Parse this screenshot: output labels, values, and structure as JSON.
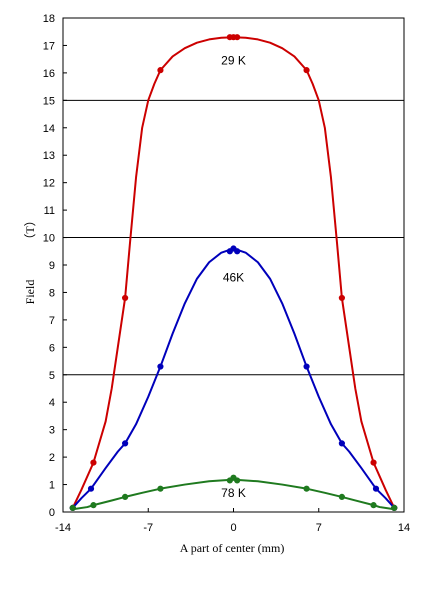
{
  "chart_data": {
    "type": "line",
    "title": "",
    "xlabel": "A part of center (mm)",
    "ylabel": "Field",
    "yunit": "（T）",
    "xlim": [
      -14,
      14
    ],
    "ylim": [
      0,
      18
    ],
    "xticks": [
      -14,
      -7,
      0,
      7,
      14
    ],
    "yticks": [
      0,
      1,
      2,
      3,
      4,
      5,
      6,
      7,
      8,
      9,
      10,
      11,
      12,
      13,
      14,
      15,
      16,
      17,
      18
    ],
    "xtick_labels": [
      "-14",
      "-7",
      "0",
      "7",
      "14"
    ],
    "ytick_labels": [
      "0",
      "1",
      "2",
      "3",
      "4",
      "5",
      "6",
      "7",
      "8",
      "9",
      "10",
      "11",
      "12",
      "13",
      "14",
      "15",
      "16",
      "17",
      "18"
    ],
    "reference_lines": [
      5,
      10,
      15
    ],
    "grid": false,
    "legend": "none",
    "series": [
      {
        "label": "29 K",
        "color": "#cc0000",
        "label_pos": [
          0,
          16.3
        ],
        "x": [
          -13.2,
          -11.5,
          -8.9,
          -6.0,
          -0.3,
          0,
          0.3,
          6.0,
          8.9,
          11.5,
          13.2
        ],
        "y": [
          0.15,
          1.8,
          7.8,
          16.1,
          17.3,
          17.3,
          17.3,
          16.1,
          7.8,
          1.8,
          0.15
        ],
        "curve_x": [
          -13.2,
          -12.5,
          -11.5,
          -10.5,
          -10,
          -9.5,
          -8.9,
          -8.5,
          -8,
          -7.5,
          -7.0,
          -6.5,
          -6.0,
          -5,
          -4,
          -3,
          -2,
          -1,
          0,
          1,
          2,
          3,
          4,
          5,
          6.0,
          6.5,
          7.0,
          7.5,
          8,
          8.5,
          8.9,
          9.5,
          10,
          10.5,
          11.5,
          12.5,
          13.2
        ],
        "curve_y": [
          0.15,
          0.8,
          1.8,
          3.3,
          4.5,
          6.0,
          7.8,
          9.8,
          12.2,
          14.0,
          15.0,
          15.6,
          16.1,
          16.6,
          16.9,
          17.1,
          17.22,
          17.28,
          17.3,
          17.28,
          17.22,
          17.1,
          16.9,
          16.6,
          16.1,
          15.6,
          15.0,
          14.0,
          12.2,
          9.8,
          7.8,
          6.0,
          4.5,
          3.3,
          1.8,
          0.8,
          0.15
        ]
      },
      {
        "label": "46K",
        "color": "#0000bb",
        "label_pos": [
          0,
          8.4
        ],
        "x": [
          -13.2,
          -11.7,
          -8.9,
          -6.0,
          -0.3,
          0,
          0.3,
          6.0,
          8.9,
          11.7,
          13.2
        ],
        "y": [
          0.15,
          0.85,
          2.5,
          5.3,
          9.5,
          9.6,
          9.5,
          5.3,
          2.5,
          0.85,
          0.15
        ],
        "curve_x": [
          -13.2,
          -12.5,
          -11.7,
          -10.5,
          -9.5,
          -8.9,
          -8,
          -7,
          -6.0,
          -5,
          -4,
          -3,
          -2,
          -1,
          0,
          1,
          2,
          3,
          4,
          5,
          6.0,
          7,
          8,
          8.9,
          9.5,
          10.5,
          11.7,
          12.5,
          13.2
        ],
        "curve_y": [
          0.15,
          0.5,
          0.85,
          1.6,
          2.2,
          2.5,
          3.2,
          4.2,
          5.3,
          6.5,
          7.6,
          8.5,
          9.1,
          9.45,
          9.6,
          9.45,
          9.1,
          8.5,
          7.6,
          6.5,
          5.3,
          4.2,
          3.2,
          2.5,
          2.2,
          1.6,
          0.85,
          0.5,
          0.15
        ]
      },
      {
        "label": "78 K",
        "color": "#1f7a1f",
        "label_pos": [
          0,
          0.55
        ],
        "x": [
          -13.2,
          -11.5,
          -8.9,
          -6.0,
          -0.3,
          0,
          0.3,
          6.0,
          8.9,
          11.5,
          13.2
        ],
        "y": [
          0.15,
          0.25,
          0.55,
          0.85,
          1.15,
          1.25,
          1.15,
          0.85,
          0.55,
          0.25,
          0.15
        ],
        "curve_x": [
          -13.2,
          -12,
          -11.5,
          -10,
          -8.9,
          -7.5,
          -6.0,
          -4,
          -2,
          0,
          2,
          4,
          6.0,
          7.5,
          8.9,
          10,
          11.5,
          12,
          13.2
        ],
        "curve_y": [
          0.1,
          0.18,
          0.25,
          0.42,
          0.55,
          0.7,
          0.85,
          1.0,
          1.12,
          1.18,
          1.12,
          1.0,
          0.85,
          0.7,
          0.55,
          0.42,
          0.25,
          0.18,
          0.1
        ]
      }
    ]
  }
}
